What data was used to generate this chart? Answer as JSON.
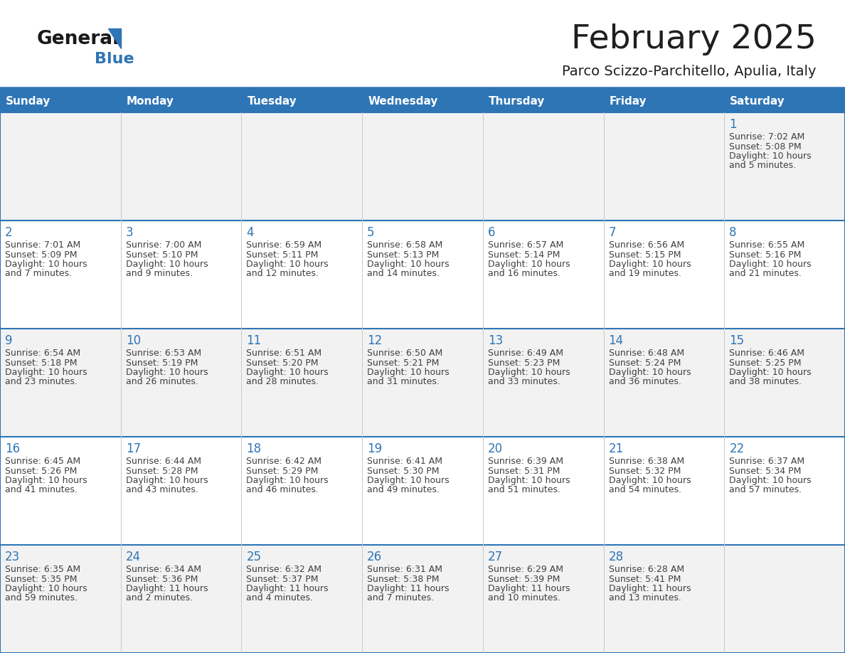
{
  "title": "February 2025",
  "subtitle": "Parco Scizzo-Parchitello, Apulia, Italy",
  "header_color": "#2E75B6",
  "header_text_color": "#FFFFFF",
  "cell_bg_row0": "#F2F2F2",
  "cell_bg_even": "#F2F2F2",
  "cell_bg_odd": "#FFFFFF",
  "day_headers": [
    "Sunday",
    "Monday",
    "Tuesday",
    "Wednesday",
    "Thursday",
    "Friday",
    "Saturday"
  ],
  "title_color": "#1F1F1F",
  "subtitle_color": "#1F1F1F",
  "line_color": "#2E75B6",
  "day_number_color": "#2E75B6",
  "cell_text_color": "#404040",
  "logo_general_color": "#1A1A1A",
  "logo_blue_color": "#2E75B6",
  "days": [
    {
      "day": 1,
      "col": 6,
      "row": 0,
      "sunrise": "7:02 AM",
      "sunset": "5:08 PM",
      "daylight_l1": "Daylight: 10 hours",
      "daylight_l2": "and 5 minutes."
    },
    {
      "day": 2,
      "col": 0,
      "row": 1,
      "sunrise": "7:01 AM",
      "sunset": "5:09 PM",
      "daylight_l1": "Daylight: 10 hours",
      "daylight_l2": "and 7 minutes."
    },
    {
      "day": 3,
      "col": 1,
      "row": 1,
      "sunrise": "7:00 AM",
      "sunset": "5:10 PM",
      "daylight_l1": "Daylight: 10 hours",
      "daylight_l2": "and 9 minutes."
    },
    {
      "day": 4,
      "col": 2,
      "row": 1,
      "sunrise": "6:59 AM",
      "sunset": "5:11 PM",
      "daylight_l1": "Daylight: 10 hours",
      "daylight_l2": "and 12 minutes."
    },
    {
      "day": 5,
      "col": 3,
      "row": 1,
      "sunrise": "6:58 AM",
      "sunset": "5:13 PM",
      "daylight_l1": "Daylight: 10 hours",
      "daylight_l2": "and 14 minutes."
    },
    {
      "day": 6,
      "col": 4,
      "row": 1,
      "sunrise": "6:57 AM",
      "sunset": "5:14 PM",
      "daylight_l1": "Daylight: 10 hours",
      "daylight_l2": "and 16 minutes."
    },
    {
      "day": 7,
      "col": 5,
      "row": 1,
      "sunrise": "6:56 AM",
      "sunset": "5:15 PM",
      "daylight_l1": "Daylight: 10 hours",
      "daylight_l2": "and 19 minutes."
    },
    {
      "day": 8,
      "col": 6,
      "row": 1,
      "sunrise": "6:55 AM",
      "sunset": "5:16 PM",
      "daylight_l1": "Daylight: 10 hours",
      "daylight_l2": "and 21 minutes."
    },
    {
      "day": 9,
      "col": 0,
      "row": 2,
      "sunrise": "6:54 AM",
      "sunset": "5:18 PM",
      "daylight_l1": "Daylight: 10 hours",
      "daylight_l2": "and 23 minutes."
    },
    {
      "day": 10,
      "col": 1,
      "row": 2,
      "sunrise": "6:53 AM",
      "sunset": "5:19 PM",
      "daylight_l1": "Daylight: 10 hours",
      "daylight_l2": "and 26 minutes."
    },
    {
      "day": 11,
      "col": 2,
      "row": 2,
      "sunrise": "6:51 AM",
      "sunset": "5:20 PM",
      "daylight_l1": "Daylight: 10 hours",
      "daylight_l2": "and 28 minutes."
    },
    {
      "day": 12,
      "col": 3,
      "row": 2,
      "sunrise": "6:50 AM",
      "sunset": "5:21 PM",
      "daylight_l1": "Daylight: 10 hours",
      "daylight_l2": "and 31 minutes."
    },
    {
      "day": 13,
      "col": 4,
      "row": 2,
      "sunrise": "6:49 AM",
      "sunset": "5:23 PM",
      "daylight_l1": "Daylight: 10 hours",
      "daylight_l2": "and 33 minutes."
    },
    {
      "day": 14,
      "col": 5,
      "row": 2,
      "sunrise": "6:48 AM",
      "sunset": "5:24 PM",
      "daylight_l1": "Daylight: 10 hours",
      "daylight_l2": "and 36 minutes."
    },
    {
      "day": 15,
      "col": 6,
      "row": 2,
      "sunrise": "6:46 AM",
      "sunset": "5:25 PM",
      "daylight_l1": "Daylight: 10 hours",
      "daylight_l2": "and 38 minutes."
    },
    {
      "day": 16,
      "col": 0,
      "row": 3,
      "sunrise": "6:45 AM",
      "sunset": "5:26 PM",
      "daylight_l1": "Daylight: 10 hours",
      "daylight_l2": "and 41 minutes."
    },
    {
      "day": 17,
      "col": 1,
      "row": 3,
      "sunrise": "6:44 AM",
      "sunset": "5:28 PM",
      "daylight_l1": "Daylight: 10 hours",
      "daylight_l2": "and 43 minutes."
    },
    {
      "day": 18,
      "col": 2,
      "row": 3,
      "sunrise": "6:42 AM",
      "sunset": "5:29 PM",
      "daylight_l1": "Daylight: 10 hours",
      "daylight_l2": "and 46 minutes."
    },
    {
      "day": 19,
      "col": 3,
      "row": 3,
      "sunrise": "6:41 AM",
      "sunset": "5:30 PM",
      "daylight_l1": "Daylight: 10 hours",
      "daylight_l2": "and 49 minutes."
    },
    {
      "day": 20,
      "col": 4,
      "row": 3,
      "sunrise": "6:39 AM",
      "sunset": "5:31 PM",
      "daylight_l1": "Daylight: 10 hours",
      "daylight_l2": "and 51 minutes."
    },
    {
      "day": 21,
      "col": 5,
      "row": 3,
      "sunrise": "6:38 AM",
      "sunset": "5:32 PM",
      "daylight_l1": "Daylight: 10 hours",
      "daylight_l2": "and 54 minutes."
    },
    {
      "day": 22,
      "col": 6,
      "row": 3,
      "sunrise": "6:37 AM",
      "sunset": "5:34 PM",
      "daylight_l1": "Daylight: 10 hours",
      "daylight_l2": "and 57 minutes."
    },
    {
      "day": 23,
      "col": 0,
      "row": 4,
      "sunrise": "6:35 AM",
      "sunset": "5:35 PM",
      "daylight_l1": "Daylight: 10 hours",
      "daylight_l2": "and 59 minutes."
    },
    {
      "day": 24,
      "col": 1,
      "row": 4,
      "sunrise": "6:34 AM",
      "sunset": "5:36 PM",
      "daylight_l1": "Daylight: 11 hours",
      "daylight_l2": "and 2 minutes."
    },
    {
      "day": 25,
      "col": 2,
      "row": 4,
      "sunrise": "6:32 AM",
      "sunset": "5:37 PM",
      "daylight_l1": "Daylight: 11 hours",
      "daylight_l2": "and 4 minutes."
    },
    {
      "day": 26,
      "col": 3,
      "row": 4,
      "sunrise": "6:31 AM",
      "sunset": "5:38 PM",
      "daylight_l1": "Daylight: 11 hours",
      "daylight_l2": "and 7 minutes."
    },
    {
      "day": 27,
      "col": 4,
      "row": 4,
      "sunrise": "6:29 AM",
      "sunset": "5:39 PM",
      "daylight_l1": "Daylight: 11 hours",
      "daylight_l2": "and 10 minutes."
    },
    {
      "day": 28,
      "col": 5,
      "row": 4,
      "sunrise": "6:28 AM",
      "sunset": "5:41 PM",
      "daylight_l1": "Daylight: 11 hours",
      "daylight_l2": "and 13 minutes."
    }
  ]
}
